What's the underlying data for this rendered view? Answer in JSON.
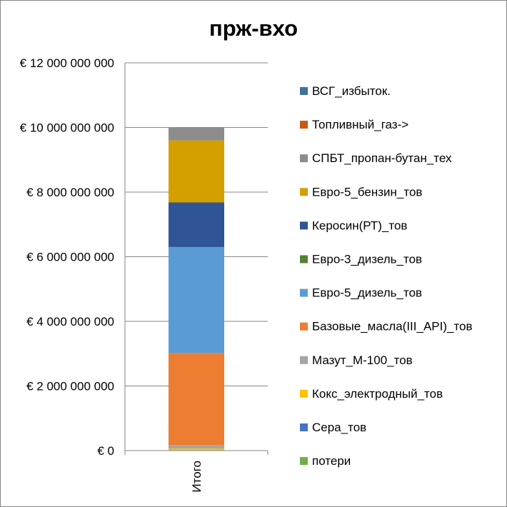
{
  "chart_data": {
    "type": "bar",
    "stacked": true,
    "title": "прж-вхо",
    "xlabel": "",
    "ylabel": "",
    "categories": [
      "Итого"
    ],
    "ylim": [
      0,
      12000000000
    ],
    "ytick_step": 2000000000,
    "ytick_labels": [
      "€ 0",
      "€ 2 000 000 000",
      "€ 4 000 000 000",
      "€ 6 000 000 000",
      "€ 8 000 000 000",
      "€ 10 000 000 000",
      "€ 12 000 000 000"
    ],
    "grid": true,
    "legend_position": "right",
    "series": [
      {
        "name": "потери",
        "color": "#70ad47",
        "values": [
          0
        ]
      },
      {
        "name": "Сера_тов",
        "color": "#4472c4",
        "values": [
          10000000
        ]
      },
      {
        "name": "Кокс_электродный_тов",
        "color": "#ffc000",
        "values": [
          50000000
        ]
      },
      {
        "name": "Мазут_М-100_тов",
        "color": "#a5a5a5",
        "values": [
          110000000
        ]
      },
      {
        "name": "Базовые_масла(III_API)_тов",
        "color": "#ed7d31",
        "values": [
          2850000000
        ]
      },
      {
        "name": "Евро-5_дизель_тов",
        "color": "#5b9bd5",
        "values": [
          3280000000
        ]
      },
      {
        "name": "Евро-3_дизель_тов",
        "color": "#548235",
        "values": [
          0
        ]
      },
      {
        "name": "Керосин(РТ)_тов",
        "color": "#2f5597",
        "values": [
          1380000000
        ]
      },
      {
        "name": "Евро-5_бензин_тов",
        "color": "#d4a000",
        "values": [
          1920000000
        ]
      },
      {
        "name": "СПБТ_пропан-бутан_тех",
        "color": "#8c8c8c",
        "values": [
          400000000
        ]
      },
      {
        "name": "Топливный_газ->",
        "color": "#c55a11",
        "values": [
          0
        ]
      },
      {
        "name": "ВСГ_избыток.",
        "color": "#41719c",
        "values": [
          0
        ]
      }
    ]
  }
}
